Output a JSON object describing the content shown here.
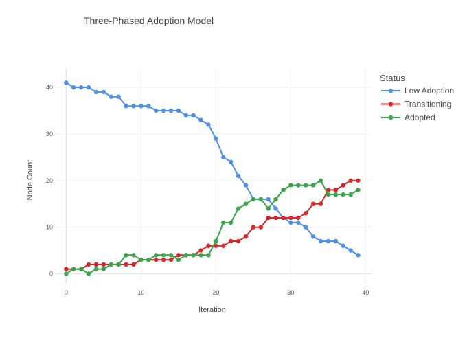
{
  "chart_data": {
    "type": "line",
    "title": "Three-Phased Adoption Model",
    "xlabel": "Iteration",
    "ylabel": "Node Count",
    "x": [
      0,
      1,
      2,
      3,
      4,
      5,
      6,
      7,
      8,
      9,
      10,
      11,
      12,
      13,
      14,
      15,
      16,
      17,
      18,
      19,
      20,
      21,
      22,
      23,
      24,
      25,
      26,
      27,
      28,
      29,
      30,
      31,
      32,
      33,
      34,
      35,
      36,
      37,
      38,
      39
    ],
    "xlim": [
      -1.5,
      40.7
    ],
    "ylim": [
      -2,
      44
    ],
    "xticks": [
      0,
      10,
      20,
      30,
      40
    ],
    "yticks": [
      0,
      10,
      20,
      30,
      40
    ],
    "grid": true,
    "legend": {
      "title": "Status",
      "position": "top-right"
    },
    "series": [
      {
        "name": "Low Adoption",
        "color": "#4f8fe6",
        "values": [
          41,
          40,
          40,
          40,
          39,
          39,
          38,
          38,
          36,
          36,
          36,
          36,
          35,
          35,
          35,
          35,
          34,
          34,
          33,
          32,
          29,
          25,
          24,
          21,
          19,
          16,
          16,
          16,
          14,
          12,
          11,
          11,
          10,
          8,
          7,
          7,
          7,
          6,
          5,
          4
        ]
      },
      {
        "name": "Transitioning",
        "color": "#d62728",
        "values": [
          1,
          1,
          1,
          2,
          2,
          2,
          2,
          2,
          2,
          2,
          3,
          3,
          3,
          3,
          3,
          4,
          4,
          4,
          5,
          6,
          6,
          6,
          7,
          7,
          8,
          10,
          10,
          12,
          12,
          12,
          12,
          12,
          13,
          15,
          15,
          18,
          18,
          19,
          20,
          20
        ]
      },
      {
        "name": "Adopted",
        "color": "#3aa64c",
        "values": [
          0,
          1,
          1,
          0,
          1,
          1,
          2,
          2,
          4,
          4,
          3,
          3,
          4,
          4,
          4,
          3,
          4,
          4,
          4,
          4,
          7,
          11,
          11,
          14,
          15,
          16,
          16,
          14,
          16,
          18,
          19,
          19,
          19,
          19,
          20,
          17,
          17,
          17,
          17,
          18
        ]
      }
    ]
  }
}
